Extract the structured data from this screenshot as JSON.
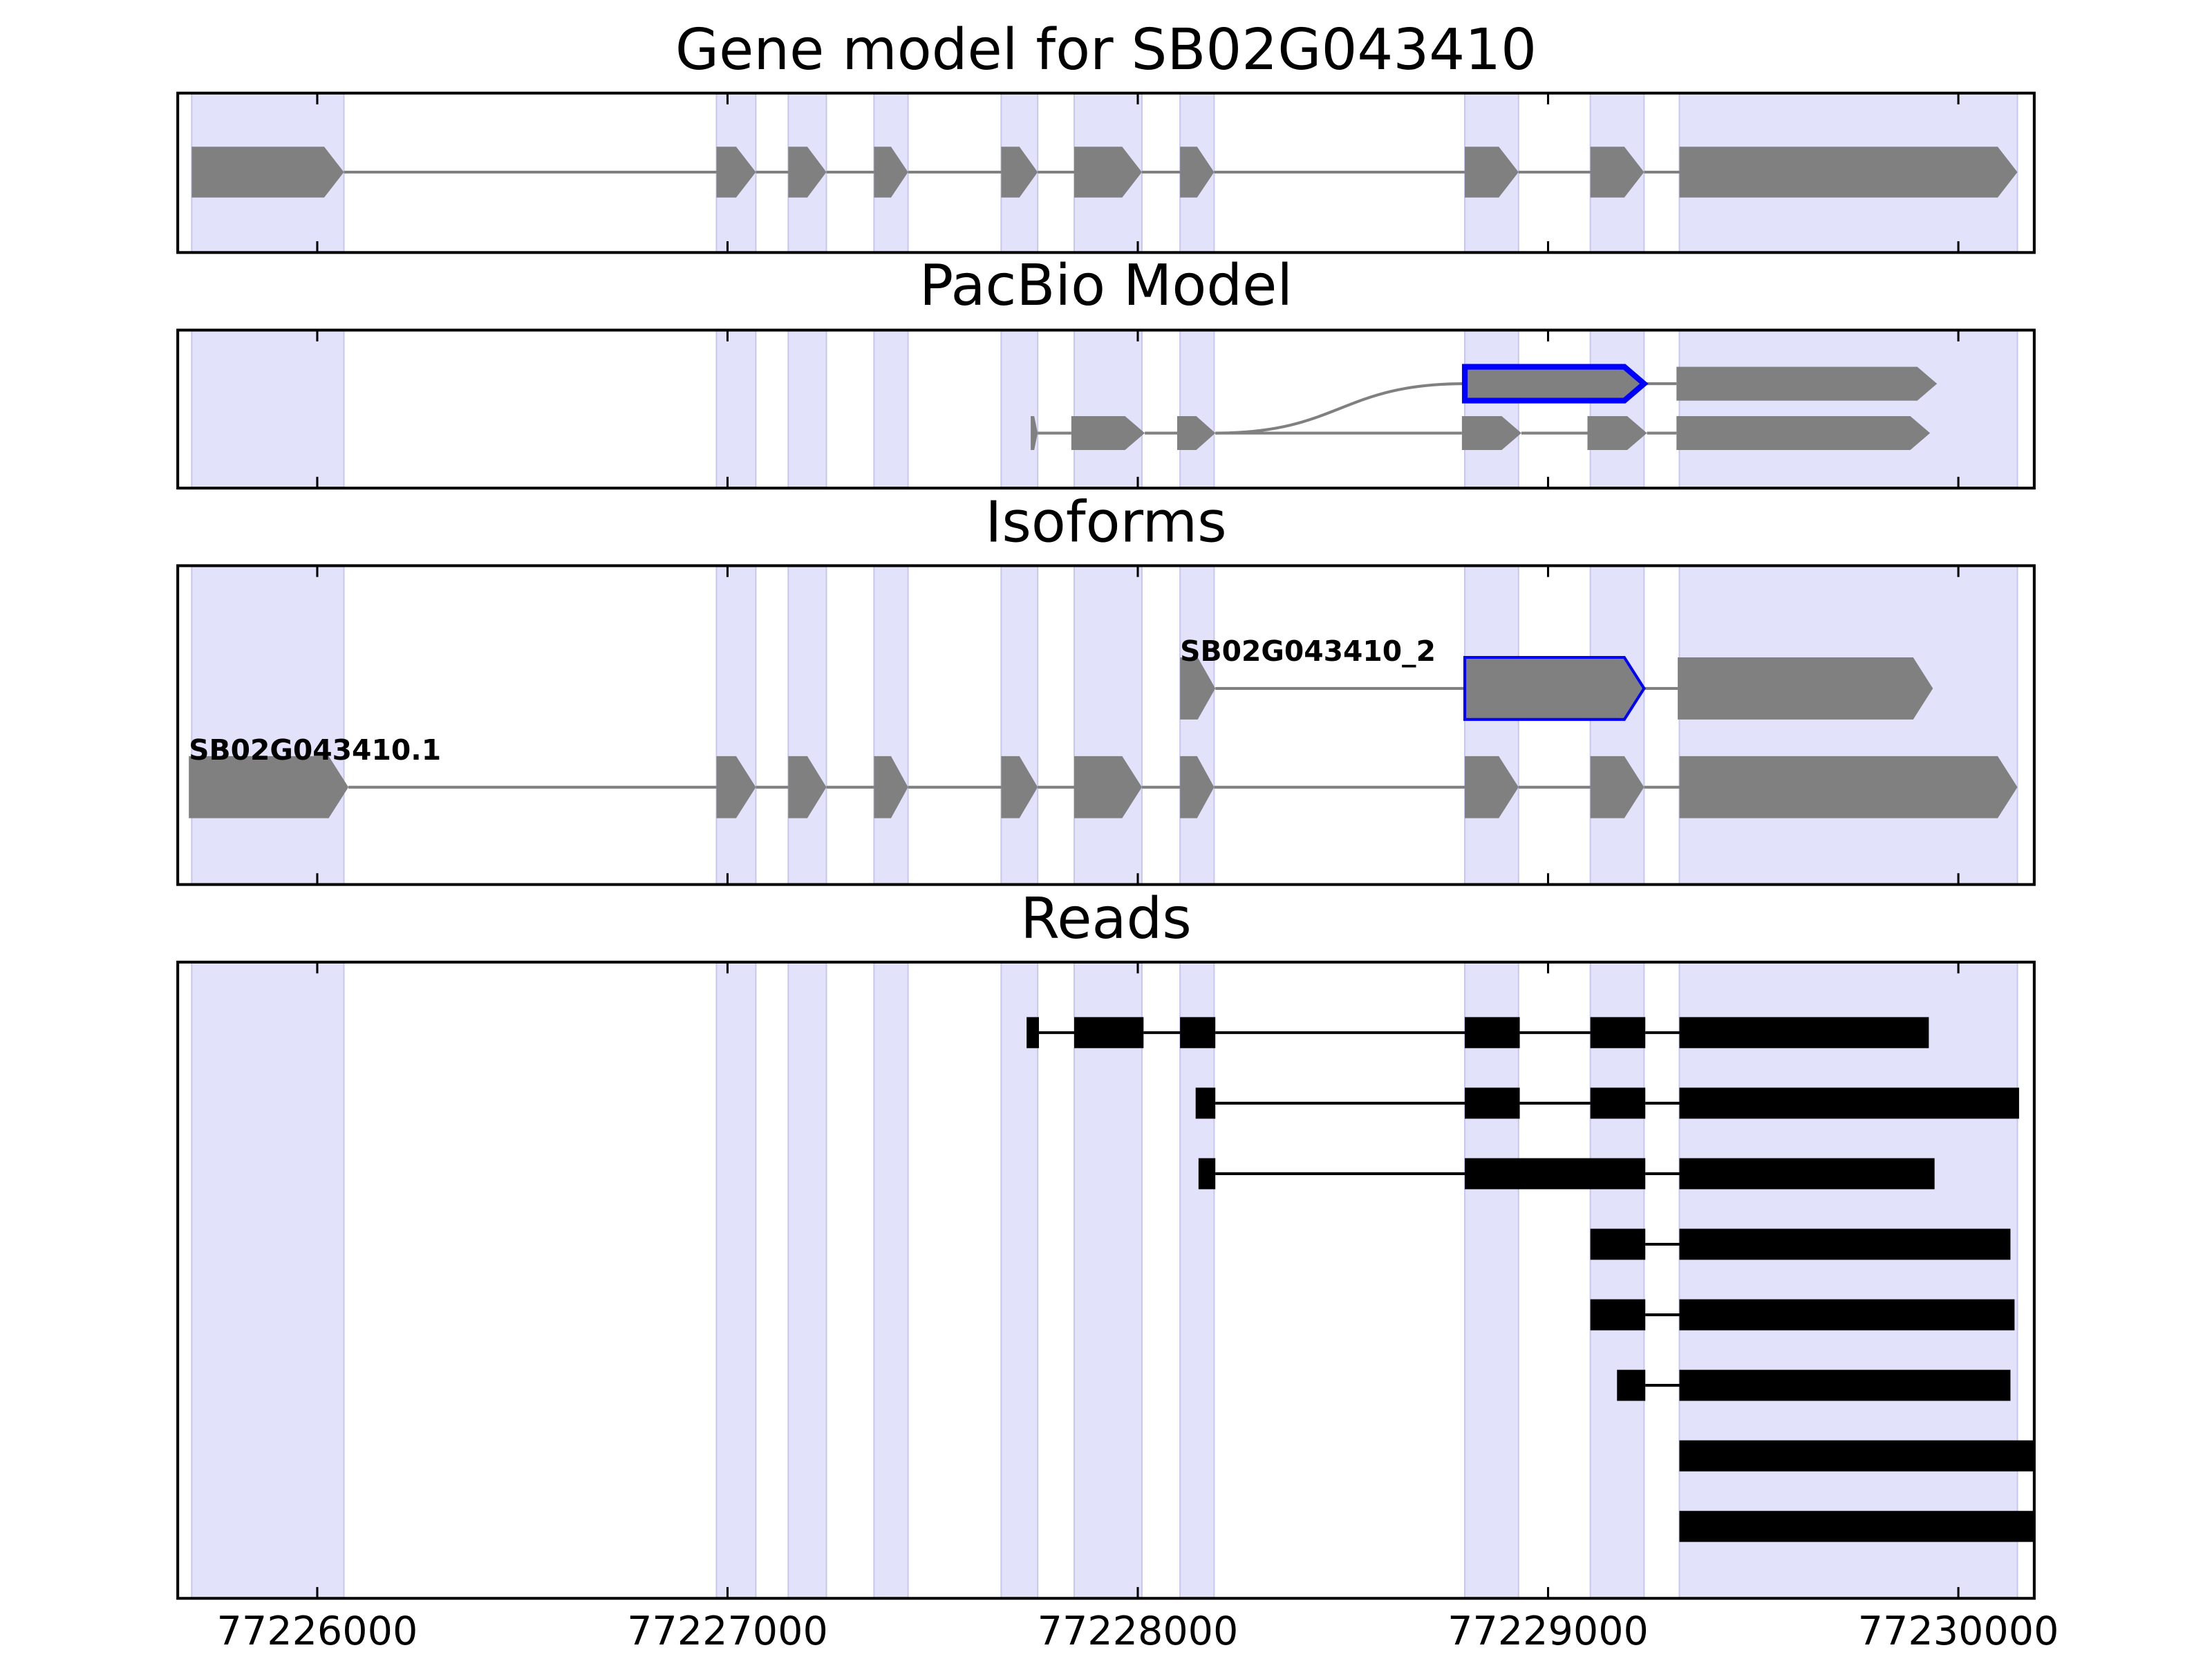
{
  "chart_data": [
    {
      "type": "gene-model",
      "title": "Gene model for SB02G043410",
      "color": "#808080",
      "band_color": "#e2e2fb",
      "exons": [
        [
          77225694,
          77226065
        ],
        [
          77226973,
          77227069
        ],
        [
          77227148,
          77227241
        ],
        [
          77227357,
          77227440
        ],
        [
          77227667,
          77227756
        ],
        [
          77227845,
          77228010
        ],
        [
          77228103,
          77228186
        ],
        [
          77228797,
          77228928
        ],
        [
          77229103,
          77229234
        ],
        [
          77229320,
          77230144
        ]
      ]
    },
    {
      "type": "splice-graph",
      "title": "PacBio Model",
      "color": "#808080",
      "highlight_color": "#0000ff",
      "transcripts": [
        {
          "exons": [
            [
              77228797,
              77229234
            ],
            [
              77229313,
              77229948
            ]
          ],
          "highlight_exon": 0
        },
        {
          "exons": [
            [
              77227739,
              77227756
            ],
            [
              77227838,
              77228017
            ],
            [
              77228096,
              77228189
            ],
            [
              77228790,
              77228935
            ],
            [
              77229096,
              77229241
            ],
            [
              77229313,
              77229931
            ]
          ]
        }
      ]
    },
    {
      "type": "isoforms",
      "title": "Isoforms",
      "color": "#808080",
      "highlight_color": "#0000ff",
      "transcripts": [
        {
          "name": "SB02G043410_2",
          "exons": [
            [
              77228103,
              77228189
            ],
            [
              77228797,
              77229234
            ],
            [
              77229316,
              77229938
            ]
          ],
          "highlight_exon": 1
        },
        {
          "name": "SB02G043410.1",
          "exons": [
            [
              77225687,
              77226076
            ],
            [
              77226973,
              77227069
            ],
            [
              77227148,
              77227241
            ],
            [
              77227357,
              77227440
            ],
            [
              77227667,
              77227756
            ],
            [
              77227845,
              77228010
            ],
            [
              77228103,
              77228186
            ],
            [
              77228797,
              77228928
            ],
            [
              77229103,
              77229234
            ],
            [
              77229320,
              77230144
            ]
          ]
        }
      ]
    },
    {
      "type": "reads",
      "title": "Reads",
      "color": "#000000",
      "reads": [
        [
          [
            77227729,
            77227759
          ],
          [
            77227845,
            77228014
          ],
          [
            77228103,
            77228189
          ],
          [
            77228797,
            77228931
          ],
          [
            77229103,
            77229237
          ],
          [
            77229320,
            77229928
          ]
        ],
        [
          [
            77228141,
            77228189
          ],
          [
            77228797,
            77228931
          ],
          [
            77229103,
            77229237
          ],
          [
            77229320,
            77230148
          ]
        ],
        [
          [
            77228148,
            77228189
          ],
          [
            77228797,
            77229237
          ],
          [
            77229320,
            77229942
          ]
        ],
        [
          [
            77229103,
            77229237
          ],
          [
            77229320,
            77230127
          ]
        ],
        [
          [
            77229103,
            77229237
          ],
          [
            77229320,
            77230137
          ]
        ],
        [
          [
            77229168,
            77229237
          ],
          [
            77229320,
            77230127
          ]
        ],
        [
          [
            77229320,
            77230200
          ]
        ],
        [
          [
            77229320,
            77230200
          ]
        ]
      ],
      "xlim": [
        77225660,
        77230185
      ],
      "xticks": [
        77226000,
        77227000,
        77228000,
        77229000,
        77230000
      ]
    }
  ]
}
